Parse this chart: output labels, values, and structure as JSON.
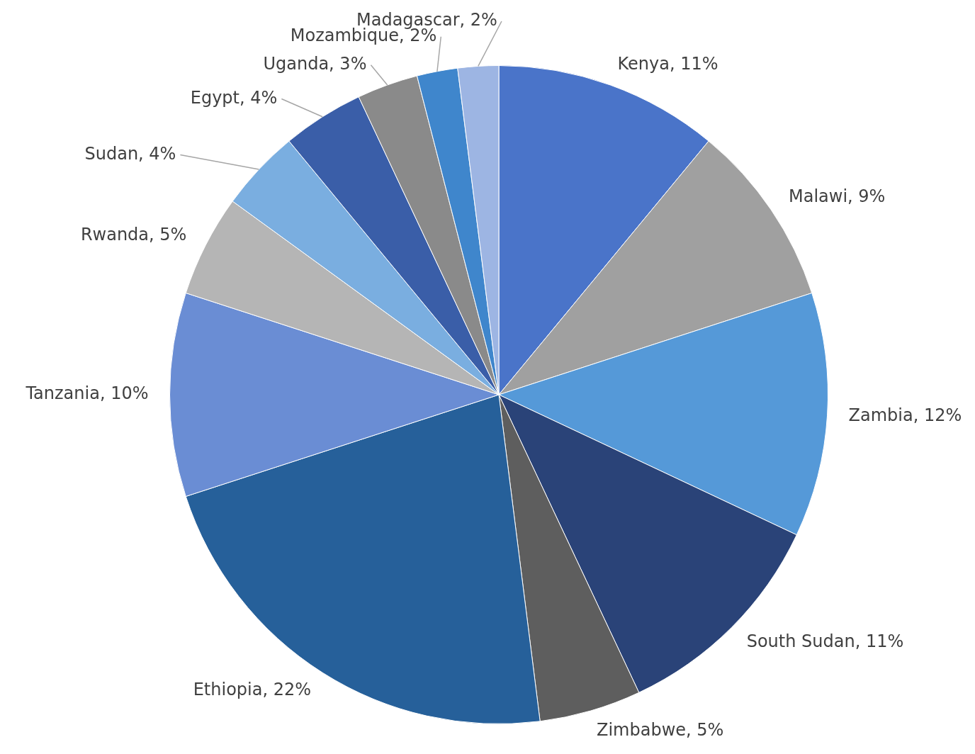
{
  "chart_data": {
    "type": "pie",
    "categories": [
      "Kenya",
      "Malawi",
      "Zambia",
      "South Sudan",
      "Zimbabwe",
      "Ethiopia",
      "Tanzania",
      "Rwanda",
      "Sudan",
      "Egypt",
      "Uganda",
      "Mozambique",
      "Madagascar"
    ],
    "values": [
      11,
      9,
      12,
      11,
      5,
      22,
      10,
      5,
      4,
      4,
      3,
      2,
      2
    ],
    "value_labels": [
      "11%",
      "9%",
      "12%",
      "11%",
      "5%",
      "22%",
      "10%",
      "5%",
      "4%",
      "4%",
      "3%",
      "2%",
      "2%"
    ],
    "colors": [
      "#4a74c9",
      "#a0a0a0",
      "#5599d8",
      "#2a4378",
      "#5e5e5e",
      "#26609a",
      "#6a8dd4",
      "#b5b5b5",
      "#7aaee0",
      "#3a5ea8",
      "#8a8a8a",
      "#3f86cc",
      "#9db5e3"
    ],
    "legend": false
  }
}
